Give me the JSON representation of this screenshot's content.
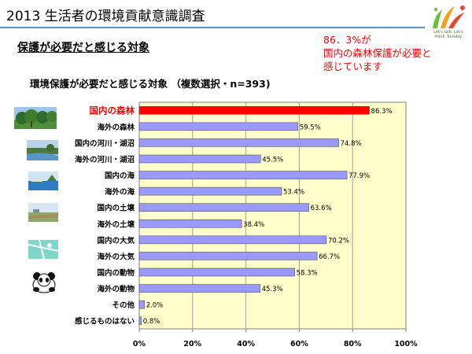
{
  "header": {
    "title": "2013 生活者の環境貢献意識調査",
    "logo_text": "Let's talk, Let's think, Sunday"
  },
  "subtitle": "保護が必要だと感じる対象",
  "callout": {
    "lines": [
      "86．3%が",
      "国内の森林保護が必要と",
      "感じています"
    ],
    "color": "#ff0000"
  },
  "colors": {
    "plot_background": "#ffffcc",
    "bar_fill": "#9999ff",
    "highlight_fill": "#ff0000",
    "title_rule": "#5b8fc9"
  },
  "icons": [
    "forest-photo",
    "river-photo",
    "sea-photo",
    "soil-photo",
    "air-photo",
    "panda-icon"
  ],
  "chart_data": {
    "type": "bar",
    "orientation": "horizontal",
    "title": "環境保護が必要だと感じる対象 （複数選択・n=393)",
    "categories": [
      "国内の森林",
      "海外の森林",
      "国内の河川・湖沼",
      "海外の河川・湖沼",
      "国内の海",
      "海外の海",
      "国内の土壌",
      "海外の土壌",
      "国内の大気",
      "海外の大気",
      "国内の動物",
      "海外の動物",
      "その他",
      "感じるものはない"
    ],
    "values": [
      86.3,
      59.5,
      74.8,
      45.5,
      77.9,
      53.4,
      63.6,
      38.4,
      70.2,
      66.7,
      58.3,
      45.3,
      2.0,
      0.8
    ],
    "value_labels": [
      "86.3%",
      "59.5%",
      "74.8%",
      "45.5%",
      "77.9%",
      "53.4%",
      "63.6%",
      "38.4%",
      "70.2%",
      "66.7%",
      "58.3%",
      "45.3%",
      "2.0%",
      "0.8%"
    ],
    "highlight_index": 0,
    "xlim": [
      0,
      100
    ],
    "x_ticks": [
      0,
      20,
      40,
      60,
      80,
      100
    ],
    "x_tick_labels": [
      "0%",
      "20%",
      "40%",
      "60%",
      "80%",
      "100%"
    ],
    "grid": true
  }
}
